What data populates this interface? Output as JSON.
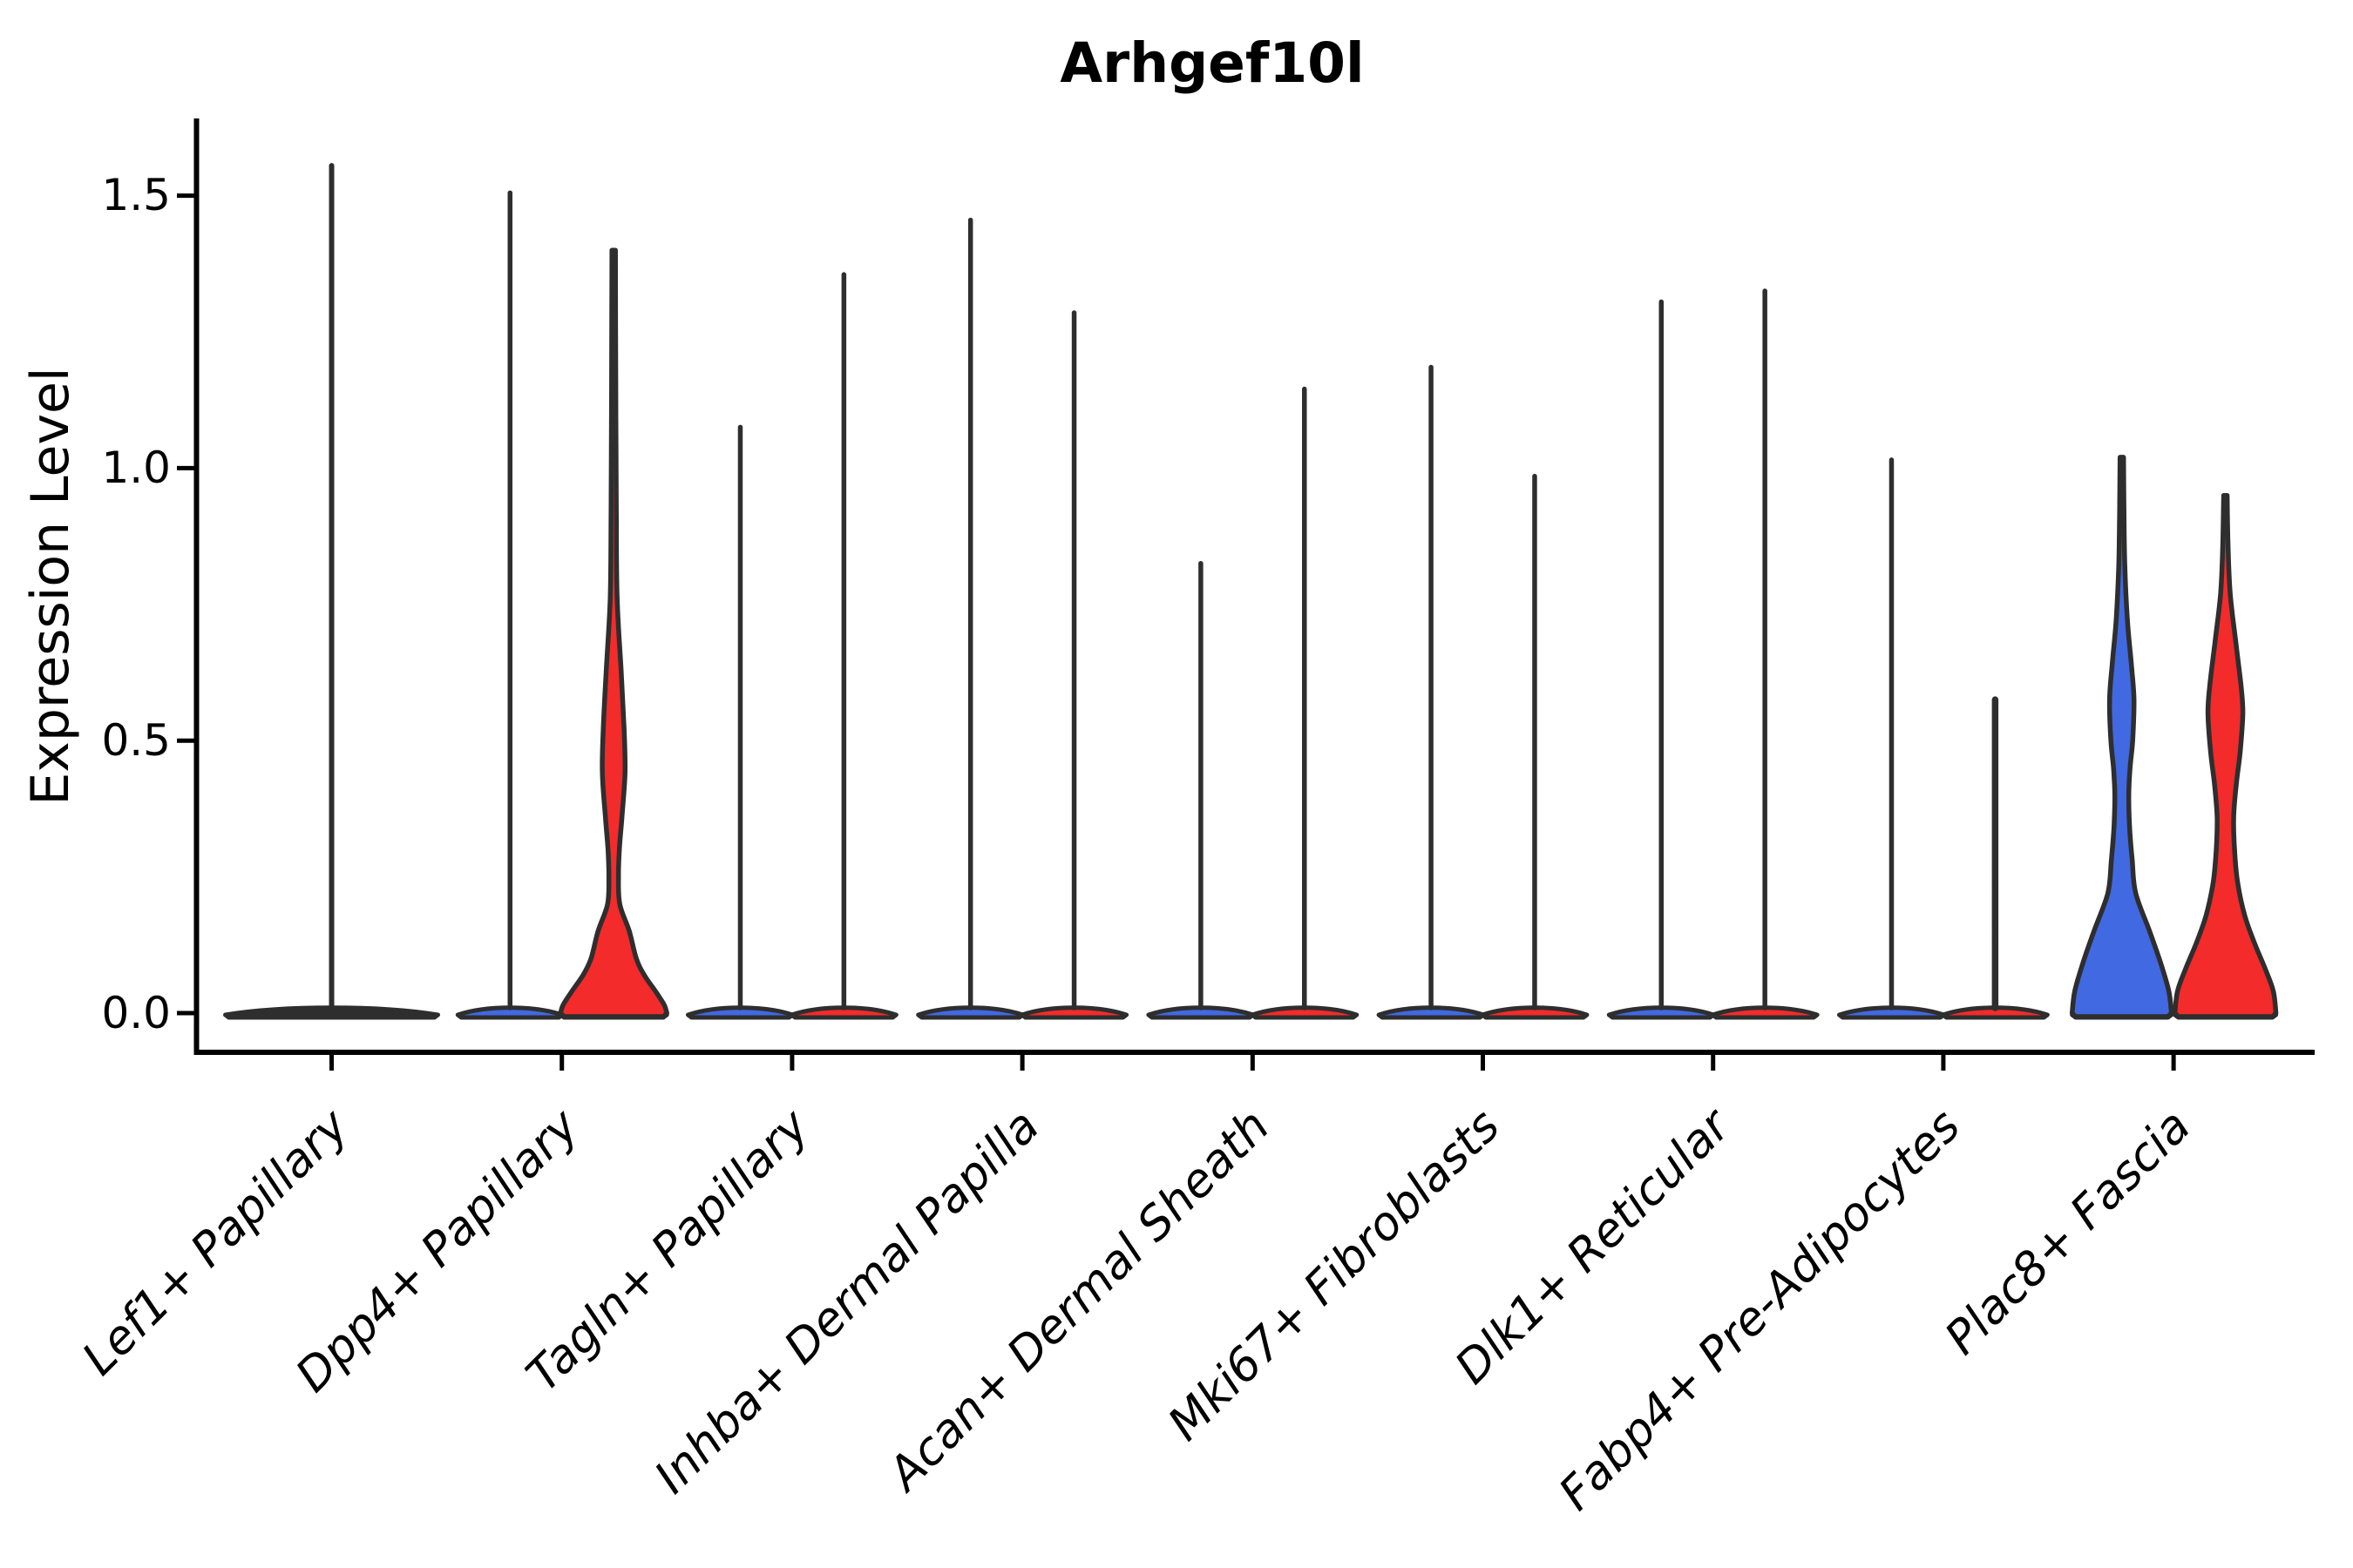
{
  "title": "Arhgef10l",
  "ylabel": "Expression Level",
  "ytick_labels": [
    "0.0",
    "0.5",
    "1.0",
    "1.5"
  ],
  "colors": {
    "blue_fill": "#4169E1",
    "red_fill": "#F32B2B",
    "outline": "#2E2E2E",
    "axis": "#000000",
    "background": "#ffffff"
  },
  "chart_data": {
    "type": "violin",
    "title": "Arhgef10l",
    "xlabel": "",
    "ylabel": "Expression Level",
    "ylim": [
      -0.07,
      1.65
    ],
    "yticks": [
      0.0,
      0.5,
      1.0,
      1.5
    ],
    "ytick_labels": [
      "0.0",
      "0.5",
      "1.0",
      "1.5"
    ],
    "grid": false,
    "legend": "none",
    "categories": [
      "Lef1+ Papillary",
      "Dpp4+ Papillary",
      "Tagln+ Papillary",
      "Inhba+ Dermal Papilla",
      "Acan+ Dermal Sheath",
      "Mki67+ Fibroblasts",
      "Dlk1+ Reticular",
      "Fabp4+ Pre-Adipocytes",
      "Plac8+ Fascia"
    ],
    "series": [
      {
        "name": "group-blue (left violin)",
        "color": "#4169E1",
        "max_expression": [
          1.56,
          1.51,
          1.08,
          1.46,
          0.83,
          1.19,
          1.31,
          1.02,
          1.02
        ]
      },
      {
        "name": "group-red (right violin)",
        "color": "#F32B2B",
        "max_expression": [
          null,
          1.4,
          1.36,
          1.29,
          1.15,
          0.99,
          1.33,
          0.58,
          0.95
        ]
      }
    ],
    "note": "Lef1+ Papillary shows a single centered full-width violin; all violins are near-zero-width spikes with flat mass at 0 except Dpp4+red, Plac8+blue, Plac8+red which have visible density bulges.",
    "violins": [
      {
        "cat": 0,
        "group": "single",
        "kind": "spike",
        "top": 1.56,
        "offset": 0,
        "base_hw": 122,
        "stroke_w": 6,
        "fill": "outline"
      },
      {
        "cat": 1,
        "group": "blue",
        "kind": "spike",
        "top": 1.51,
        "offset": -0.225,
        "base_hw": 60,
        "stroke_w": 5.5,
        "fill": "blue_fill"
      },
      {
        "cat": 1,
        "group": "red",
        "kind": "body",
        "top": 1.4,
        "offset": 0.225,
        "base_hw": 61,
        "stroke_w": 5.5,
        "fill": "red_fill",
        "profile": [
          [
            1.4,
            2
          ],
          [
            1.15,
            2.4
          ],
          [
            0.92,
            3
          ],
          [
            0.76,
            4
          ],
          [
            0.63,
            8.5
          ],
          [
            0.52,
            12
          ],
          [
            0.44,
            13
          ],
          [
            0.36,
            9.5
          ],
          [
            0.3,
            6.5
          ],
          [
            0.25,
            5.5
          ],
          [
            0.2,
            7
          ],
          [
            0.15,
            18
          ],
          [
            0.1,
            26
          ],
          [
            0.07,
            35
          ],
          [
            0.04,
            48
          ],
          [
            0.015,
            58
          ],
          [
            0,
            61
          ]
        ]
      },
      {
        "cat": 2,
        "group": "blue",
        "kind": "spike",
        "top": 1.08,
        "offset": -0.225,
        "base_hw": 60,
        "stroke_w": 5.5,
        "fill": "blue_fill"
      },
      {
        "cat": 2,
        "group": "red",
        "kind": "spike",
        "top": 1.36,
        "offset": 0.225,
        "base_hw": 60,
        "stroke_w": 5.5,
        "fill": "red_fill"
      },
      {
        "cat": 3,
        "group": "blue",
        "kind": "spike",
        "top": 1.46,
        "offset": -0.225,
        "base_hw": 60,
        "stroke_w": 5.5,
        "fill": "blue_fill"
      },
      {
        "cat": 3,
        "group": "red",
        "kind": "spike",
        "top": 1.29,
        "offset": 0.225,
        "base_hw": 60,
        "stroke_w": 5.5,
        "fill": "red_fill"
      },
      {
        "cat": 4,
        "group": "blue",
        "kind": "spike",
        "top": 0.83,
        "offset": -0.225,
        "base_hw": 60,
        "stroke_w": 5.5,
        "fill": "blue_fill"
      },
      {
        "cat": 4,
        "group": "red",
        "kind": "spike",
        "top": 1.15,
        "offset": 0.225,
        "base_hw": 60,
        "stroke_w": 5.5,
        "fill": "red_fill"
      },
      {
        "cat": 5,
        "group": "blue",
        "kind": "spike",
        "top": 1.19,
        "offset": -0.225,
        "base_hw": 60,
        "stroke_w": 5.5,
        "fill": "blue_fill"
      },
      {
        "cat": 5,
        "group": "red",
        "kind": "spike",
        "top": 0.99,
        "offset": 0.225,
        "base_hw": 60,
        "stroke_w": 5.5,
        "fill": "red_fill"
      },
      {
        "cat": 6,
        "group": "blue",
        "kind": "spike",
        "top": 1.31,
        "offset": -0.225,
        "base_hw": 60,
        "stroke_w": 5.5,
        "fill": "blue_fill"
      },
      {
        "cat": 6,
        "group": "red",
        "kind": "spike",
        "top": 1.33,
        "offset": 0.225,
        "base_hw": 60,
        "stroke_w": 5.5,
        "fill": "red_fill"
      },
      {
        "cat": 7,
        "group": "blue",
        "kind": "spike",
        "top": 1.02,
        "offset": -0.225,
        "base_hw": 60,
        "stroke_w": 5.5,
        "fill": "blue_fill"
      },
      {
        "cat": 7,
        "group": "red",
        "kind": "spike",
        "top": 0.58,
        "offset": 0.225,
        "base_hw": 60,
        "stroke_w": 7.5,
        "fill": "red_fill",
        "points": [
          0.43,
          0.27,
          0.23,
          0.2,
          0.17,
          0.14
        ]
      },
      {
        "cat": 8,
        "group": "blue",
        "kind": "body",
        "top": 1.02,
        "offset": -0.225,
        "base_hw": 57,
        "stroke_w": 5.5,
        "fill": "blue_fill",
        "profile": [
          [
            1.02,
            2
          ],
          [
            0.92,
            2.5
          ],
          [
            0.82,
            3.5
          ],
          [
            0.72,
            6.5
          ],
          [
            0.64,
            11
          ],
          [
            0.575,
            14
          ],
          [
            0.5,
            12.5
          ],
          [
            0.45,
            9.5
          ],
          [
            0.4,
            8
          ],
          [
            0.34,
            9
          ],
          [
            0.28,
            12
          ],
          [
            0.22,
            16
          ],
          [
            0.15,
            32
          ],
          [
            0.09,
            45
          ],
          [
            0.04,
            54
          ],
          [
            0,
            57
          ]
        ]
      },
      {
        "cat": 8,
        "group": "red",
        "kind": "body",
        "top": 0.95,
        "offset": 0.225,
        "base_hw": 58,
        "stroke_w": 5.5,
        "fill": "red_fill",
        "profile": [
          [
            0.95,
            2
          ],
          [
            0.86,
            3
          ],
          [
            0.77,
            5.5
          ],
          [
            0.68,
            12
          ],
          [
            0.6,
            18
          ],
          [
            0.55,
            20
          ],
          [
            0.48,
            17
          ],
          [
            0.42,
            12.5
          ],
          [
            0.36,
            9.5
          ],
          [
            0.3,
            10.5
          ],
          [
            0.24,
            14
          ],
          [
            0.18,
            22
          ],
          [
            0.13,
            33
          ],
          [
            0.08,
            46
          ],
          [
            0.04,
            55
          ],
          [
            0,
            58
          ]
        ]
      }
    ]
  }
}
